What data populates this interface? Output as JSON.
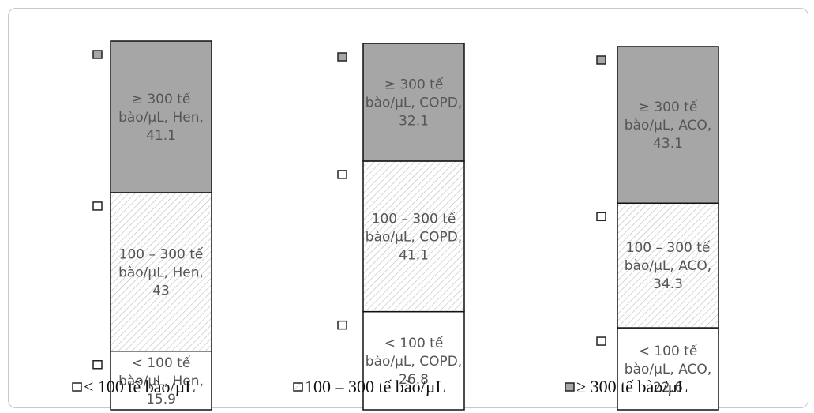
{
  "chart_data": {
    "type": "bar",
    "stacked": true,
    "categories": [
      "Hen",
      "COPD",
      "ACO"
    ],
    "series": [
      {
        "name": "< 100 tế bào/µL",
        "values": [
          15.9,
          26.8,
          22.6
        ],
        "fill": "#ffffff"
      },
      {
        "name": "100 – 300 tế bào/µL",
        "values": [
          43,
          41.1,
          34.3
        ],
        "fill": "hatch"
      },
      {
        "name": "≥ 300 tế bào/µL",
        "values": [
          41.1,
          32.1,
          43.1
        ],
        "fill": "#a6a6a6"
      }
    ],
    "labels": [
      [
        [
          "< 100 tế",
          "bào/µL, Hen,",
          "15.9"
        ],
        [
          "100 – 300 tế",
          "bào/µL, Hen,",
          "43"
        ],
        [
          "≥ 300 tế",
          "bào/µL, Hen,",
          "41.1"
        ]
      ],
      [
        [
          "< 100 tế",
          "bào/µL, COPD,",
          "26.8"
        ],
        [
          "100 – 300 tế",
          "bào/µL, COPD,",
          "41.1"
        ],
        [
          "≥ 300 tế",
          "bào/µL, COPD,",
          "32.1"
        ]
      ],
      [
        [
          "< 100 tế",
          "bào/µL, ACO,",
          "22.6"
        ],
        [
          "100 – 300 tế",
          "bào/µL, ACO,",
          "34.3"
        ],
        [
          "≥ 300 tế",
          "bào/µL, ACO,",
          "43.1"
        ]
      ]
    ],
    "legend": [
      "< 100 tế bào/µL",
      "100 – 300 tế bào/µL",
      "≥ 300 tế bào/µL"
    ],
    "legend_position": "bottom",
    "ylim": [
      0,
      100
    ],
    "grid": false
  },
  "colors": {
    "high": "#a6a6a6",
    "mid_hatch": "#bdbdbd",
    "low": "#ffffff",
    "border": "#111111"
  }
}
